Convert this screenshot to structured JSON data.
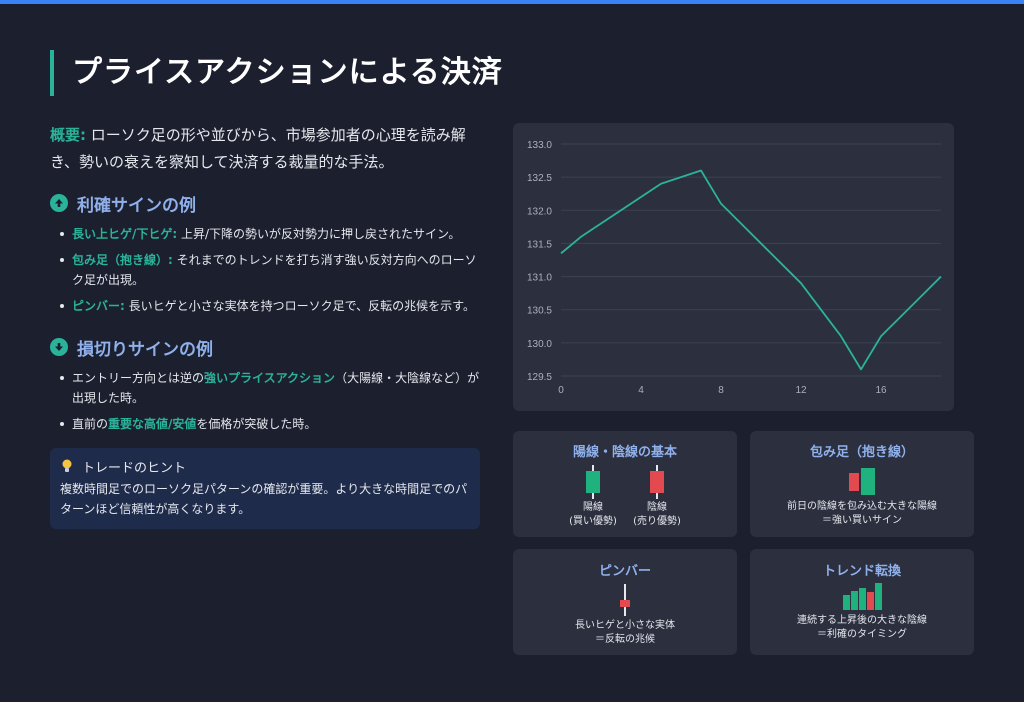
{
  "page": {
    "title": "プライスアクションによる決済",
    "overview_label": "概要:",
    "overview_text": "ローソク足の形や並びから、市場参加者の心理を読み解き、勢いの衰えを察知して決済する裁量的な手法。"
  },
  "profit": {
    "heading": "利確サインの例",
    "items": [
      {
        "label": "長い上ヒゲ/下ヒゲ:",
        "text": "上昇/下降の勢いが反対勢力に押し戻されたサイン。"
      },
      {
        "label": "包み足（抱き線）:",
        "text": "それまでのトレンドを打ち消す強い反対方向へのローソク足が出現。"
      },
      {
        "label": "ピンバー:",
        "text": "長いヒゲと小さな実体を持つローソク足で、反転の兆候を示す。"
      }
    ]
  },
  "loss": {
    "heading": "損切りサインの例",
    "items": [
      {
        "before": "エントリー方向とは逆の",
        "highlight": "強いプライスアクション",
        "after": "（大陽線・大陰線など）が出現した時。"
      },
      {
        "before": "直前の",
        "highlight": "重要な高値/安値",
        "after": "を価格が突破した時。"
      }
    ]
  },
  "hint": {
    "title": "トレードのヒント",
    "text": "複数時間足でのローソク足パターンの確認が重要。より大きな時間足でのパターンほど信頼性が高くなります。"
  },
  "chart_data": {
    "type": "line",
    "x": [
      0,
      1,
      2,
      3,
      4,
      5,
      6,
      7,
      8,
      9,
      10,
      11,
      12,
      13,
      14,
      15,
      16,
      17,
      18,
      19
    ],
    "series": [
      {
        "values": [
          131.35,
          131.6,
          131.8,
          132.0,
          132.2,
          132.4,
          132.5,
          132.6,
          132.1,
          131.8,
          131.5,
          131.2,
          130.9,
          130.5,
          130.1,
          129.6,
          130.1,
          130.4,
          130.7,
          131.0
        ]
      }
    ],
    "ylim": [
      129.5,
      133.0
    ],
    "yticks": [
      "133.0",
      "132.5",
      "132.0",
      "131.5",
      "131.0",
      "130.5",
      "130.0",
      "129.5"
    ],
    "xticks": [
      "0",
      "4",
      "8",
      "12",
      "16"
    ],
    "grid": true,
    "line_color": "#2bb39a"
  },
  "cards": {
    "basics": {
      "title": "陽線・陰線の基本",
      "bull_label": "陽線",
      "bull_sub": "(買い優勢)",
      "bear_label": "陰線",
      "bear_sub": "(売り優勢)"
    },
    "engulfing": {
      "title": "包み足（抱き線）",
      "line1": "前日の陰線を包み込む大きな陽線",
      "line2": "＝強い買いサイン"
    },
    "pinbar": {
      "title": "ピンバー",
      "line1": "長いヒゲと小さな実体",
      "line2": "＝反転の兆候"
    },
    "reversal": {
      "title": "トレンド転換",
      "line1": "連続する上昇後の大きな陰線",
      "line2": "＝利確のタイミング"
    }
  },
  "colors": {
    "accent": "#2bb39a",
    "bull": "#1fb27f",
    "bear": "#e24a4f",
    "heading": "#8fb0ea"
  }
}
